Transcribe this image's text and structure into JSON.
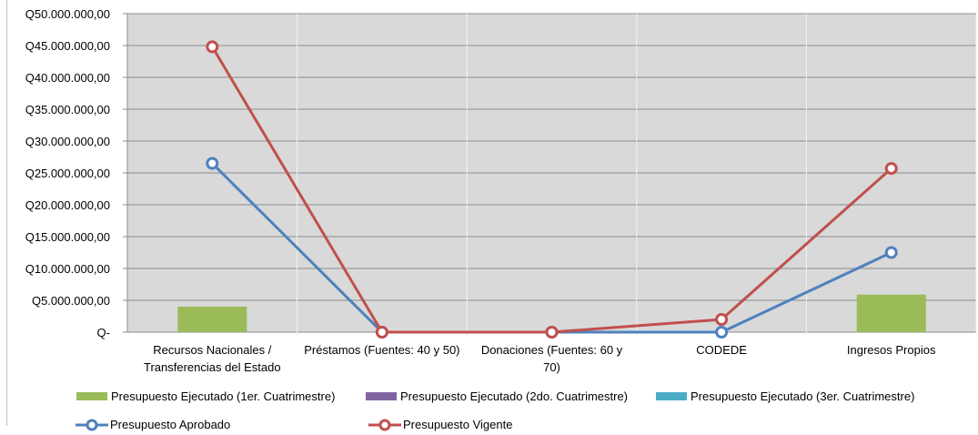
{
  "chart_data": {
    "type": "bar",
    "categories": [
      "Recursos Nacionales / Transferencias del Estado",
      "Préstamos (Fuentes: 40 y 50)",
      "Donaciones  (Fuentes: 60 y 70)",
      "CODEDE",
      "Ingresos Propios"
    ],
    "category_label_lines": [
      [
        "Recursos Nacionales /",
        "Transferencias del Estado"
      ],
      [
        "Préstamos (Fuentes: 40 y 50)"
      ],
      [
        "Donaciones  (Fuentes: 60 y",
        "70)"
      ],
      [
        "CODEDE"
      ],
      [
        "Ingresos Propios"
      ]
    ],
    "ylim": [
      0,
      50000000
    ],
    "yticks": [
      {
        "value": 0,
        "label": "Q-"
      },
      {
        "value": 5000000,
        "label": "Q5.000.000,00"
      },
      {
        "value": 10000000,
        "label": "Q10.000.000,00"
      },
      {
        "value": 15000000,
        "label": "Q15.000.000,00"
      },
      {
        "value": 20000000,
        "label": "Q20.000.000,00"
      },
      {
        "value": 25000000,
        "label": "Q25.000.000,00"
      },
      {
        "value": 30000000,
        "label": "Q30.000.000,00"
      },
      {
        "value": 35000000,
        "label": "Q35.000.000,00"
      },
      {
        "value": 40000000,
        "label": "Q40.000.000,00"
      },
      {
        "value": 45000000,
        "label": "Q45.000.000,00"
      },
      {
        "value": 50000000,
        "label": "Q50.000.000,00"
      }
    ],
    "grid": true,
    "legend_position": "bottom",
    "bar_series": [
      {
        "name": "Presupuesto Ejecutado (1er. Cuatrimestre)",
        "color": "#9bbb59",
        "values": [
          4000000,
          0,
          0,
          0,
          5900000
        ]
      },
      {
        "name": "Presupuesto Ejecutado (2do. Cuatrimestre)",
        "color": "#8064a2",
        "values": [
          0,
          0,
          0,
          0,
          0
        ]
      },
      {
        "name": "Presupuesto Ejecutado (3er. Cuatrimestre)",
        "color": "#4bacc6",
        "values": [
          0,
          0,
          0,
          0,
          0
        ]
      }
    ],
    "line_series": [
      {
        "name": "Presupuesto Aprobado",
        "color": "#4f81bd",
        "values": [
          26500000,
          0,
          0,
          0,
          12500000
        ]
      },
      {
        "name": "Presupuesto Vigente",
        "color": "#c0504d",
        "values": [
          44800000,
          0,
          0,
          2000000,
          25700000
        ]
      }
    ]
  }
}
